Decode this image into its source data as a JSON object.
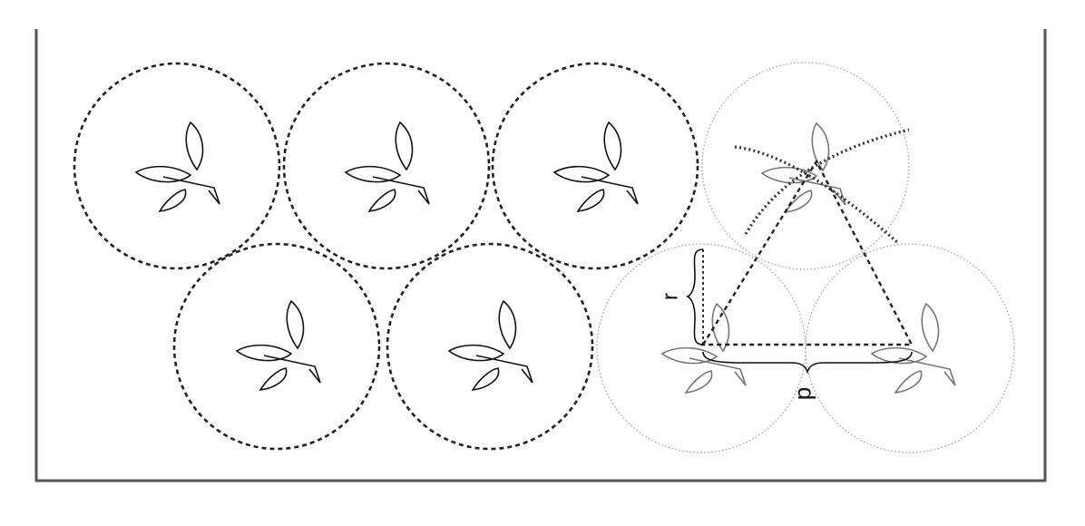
{
  "labels": {
    "radius": "r",
    "distance": "d"
  },
  "plants": [
    {
      "id": "plant-1",
      "row": 1,
      "style": "dashed"
    },
    {
      "id": "plant-2",
      "row": 1,
      "style": "dashed"
    },
    {
      "id": "plant-3",
      "row": 1,
      "style": "dashed"
    },
    {
      "id": "plant-4",
      "row": 2,
      "style": "dashed"
    },
    {
      "id": "plant-5",
      "row": 2,
      "style": "dashed"
    },
    {
      "id": "plant-6",
      "row": 1,
      "style": "dotted-light"
    },
    {
      "id": "plant-7",
      "row": 2,
      "style": "dotted-light"
    },
    {
      "id": "plant-8",
      "row": 2,
      "style": "dotted-light"
    }
  ],
  "colors": {
    "frame": "#555555",
    "dashed": "#222222",
    "light": "#9a9a9a",
    "leaf": "#111111",
    "leaf_light": "#777777"
  }
}
